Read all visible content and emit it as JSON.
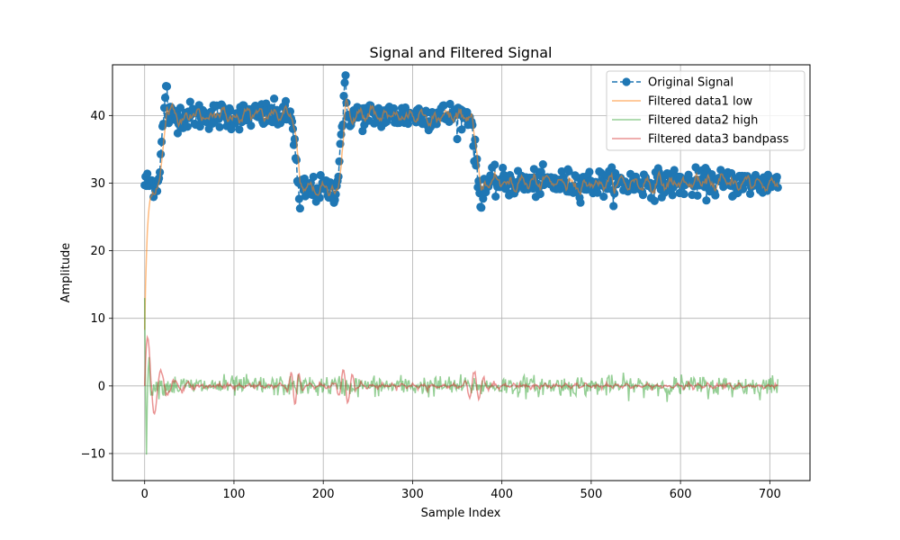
{
  "chart_data": {
    "type": "line",
    "title": "Signal and Filtered Signal",
    "xlabel": "Sample Index",
    "ylabel": "Amplitude",
    "xlim": [
      -36,
      745
    ],
    "ylim": [
      -14,
      47.5
    ],
    "xticks": [
      0,
      100,
      200,
      300,
      400,
      500,
      600,
      700
    ],
    "yticks": [
      -10,
      0,
      10,
      20,
      30,
      40
    ],
    "grid": true,
    "legend_position": "top-right",
    "n_samples": 710,
    "segments": [
      {
        "start": 0,
        "end": 15,
        "level": 30
      },
      {
        "start": 15,
        "end": 26,
        "level": 45,
        "ramp": true
      },
      {
        "start": 26,
        "end": 165,
        "level": 40
      },
      {
        "start": 165,
        "end": 175,
        "level": 26,
        "ramp": true
      },
      {
        "start": 175,
        "end": 215,
        "level": 29
      },
      {
        "start": 215,
        "end": 226,
        "level": 45,
        "ramp": true
      },
      {
        "start": 226,
        "end": 365,
        "level": 40
      },
      {
        "start": 365,
        "end": 378,
        "level": 26,
        "ramp": true
      },
      {
        "start": 378,
        "end": 710,
        "level": 30
      }
    ],
    "series": [
      {
        "name": "Original Signal",
        "style": "dashed-marker",
        "color": "#1f77b4",
        "noise": 1.0
      },
      {
        "name": "Filtered data1 low",
        "style": "line",
        "color": "#ff7f0e",
        "opacity": 0.55,
        "noise": 0.5
      },
      {
        "name": "Filtered data2 high",
        "style": "line",
        "color": "#2ca02c",
        "opacity": 0.5,
        "noise": 0.75
      },
      {
        "name": "Filtered data3 bandpass",
        "style": "line",
        "color": "#d62728",
        "opacity": 0.5,
        "noise": 0.35
      }
    ]
  }
}
